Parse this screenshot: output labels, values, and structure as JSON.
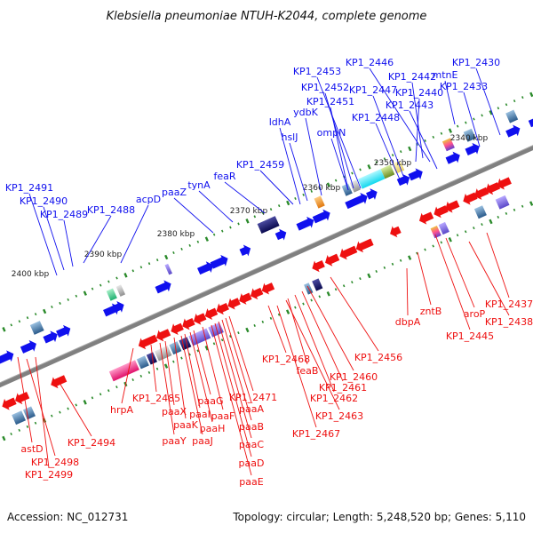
{
  "title": "Klebsiella pneumoniae NTUH-K2044, complete genome",
  "footer": {
    "accession": "Accession: NC_012731",
    "stats": "Topology: circular; Length: 5,248,520 bp; Genes: 5,110"
  },
  "colors": {
    "forward": "#1010ee",
    "reverse": "#ee1010",
    "axis": "#808080",
    "ticks": "#2a8a2a"
  },
  "kbp_marks": [
    {
      "label": "2340 kbp"
    },
    {
      "label": "2350 kbp"
    },
    {
      "label": "2360 kbp"
    },
    {
      "label": "2370 kbp"
    },
    {
      "label": "2380 kbp"
    },
    {
      "label": "2390 kbp"
    },
    {
      "label": "2400 kbp"
    }
  ],
  "forward_labels": [
    "KP1_2430",
    "KP1_2446",
    "mtnE",
    "KP1_2453",
    "KP1_2442",
    "KP1_2433",
    "KP1_2452",
    "KP1_2447",
    "KP1_2440",
    "KP1_2451",
    "KP1_2443",
    "ydbK",
    "KP1_2448",
    "ldhA",
    "ompN",
    "hslJ",
    "KP1_2459",
    "feaR",
    "tynA",
    "paaZ",
    "acpD",
    "KP1_2491",
    "KP1_2490",
    "KP1_2489",
    "KP1_2488"
  ],
  "reverse_labels": [
    "KP1_2437",
    "KP1_2438",
    "aroP",
    "KP1_2445",
    "zntB",
    "dbpA",
    "KP1_2456",
    "KP1_2460",
    "KP1_2461",
    "KP1_2462",
    "KP1_2463",
    "KP1_2467",
    "feaB",
    "KP1_2468",
    "KP1_2471",
    "paaA",
    "paaB",
    "paaC",
    "paaD",
    "paaE",
    "paaF",
    "paaG",
    "paaH",
    "paaI",
    "paaJ",
    "paaK",
    "paaX",
    "paaY",
    "KP1_2485",
    "hrpA",
    "KP1_2494",
    "astD",
    "KP1_2498",
    "KP1_2499"
  ]
}
